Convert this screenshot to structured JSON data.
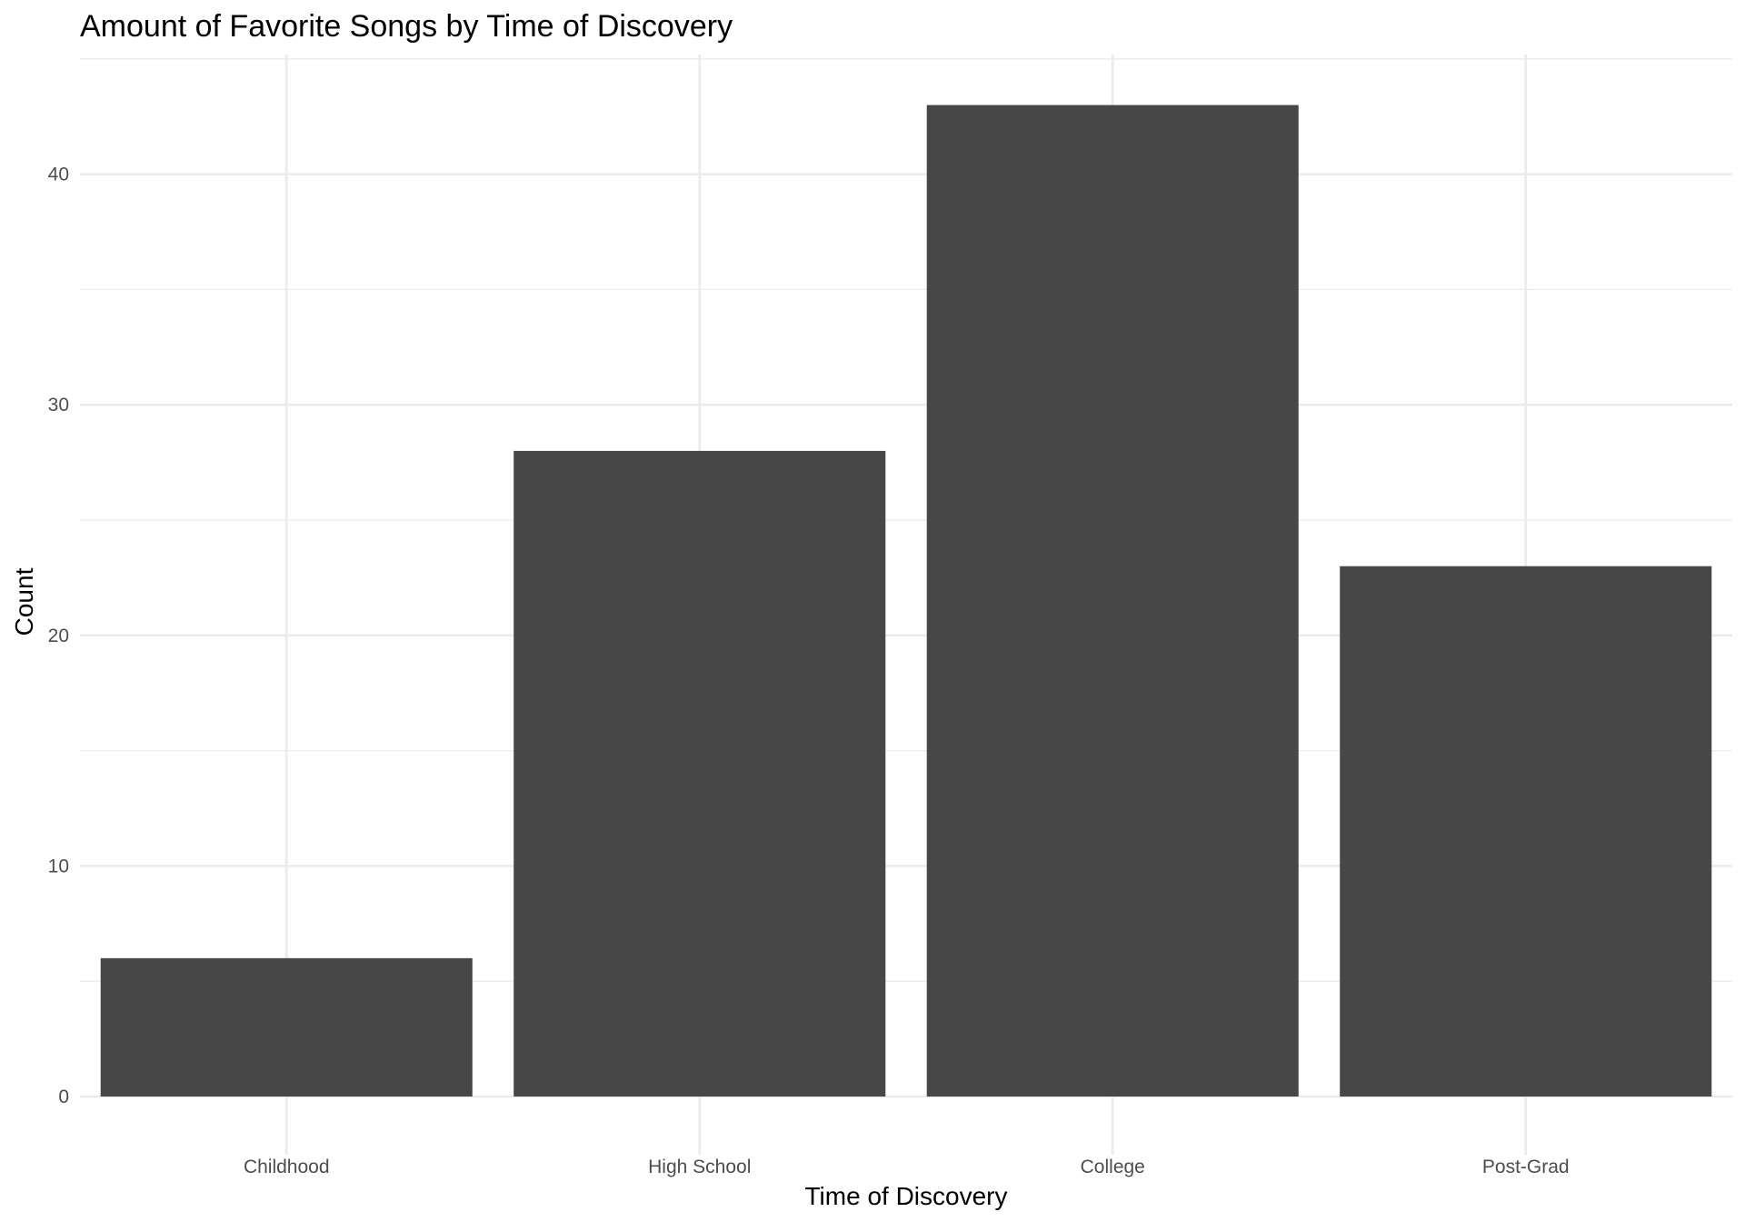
{
  "chart_data": {
    "type": "bar",
    "title": "Amount of Favorite Songs by Time of Discovery",
    "xlabel": "Time of Discovery",
    "ylabel": "Count",
    "categories": [
      "Childhood",
      "High School",
      "College",
      "Post-Grad"
    ],
    "values": [
      6,
      28,
      43,
      23
    ],
    "ylim": [
      0,
      45
    ],
    "yticks": [
      0,
      10,
      20,
      30,
      40
    ],
    "grid": true,
    "legend": "none",
    "colors": {
      "bar": "#474747",
      "grid": "#ebebeb",
      "tick_text": "#4d4d4d",
      "background": "#ffffff"
    }
  }
}
